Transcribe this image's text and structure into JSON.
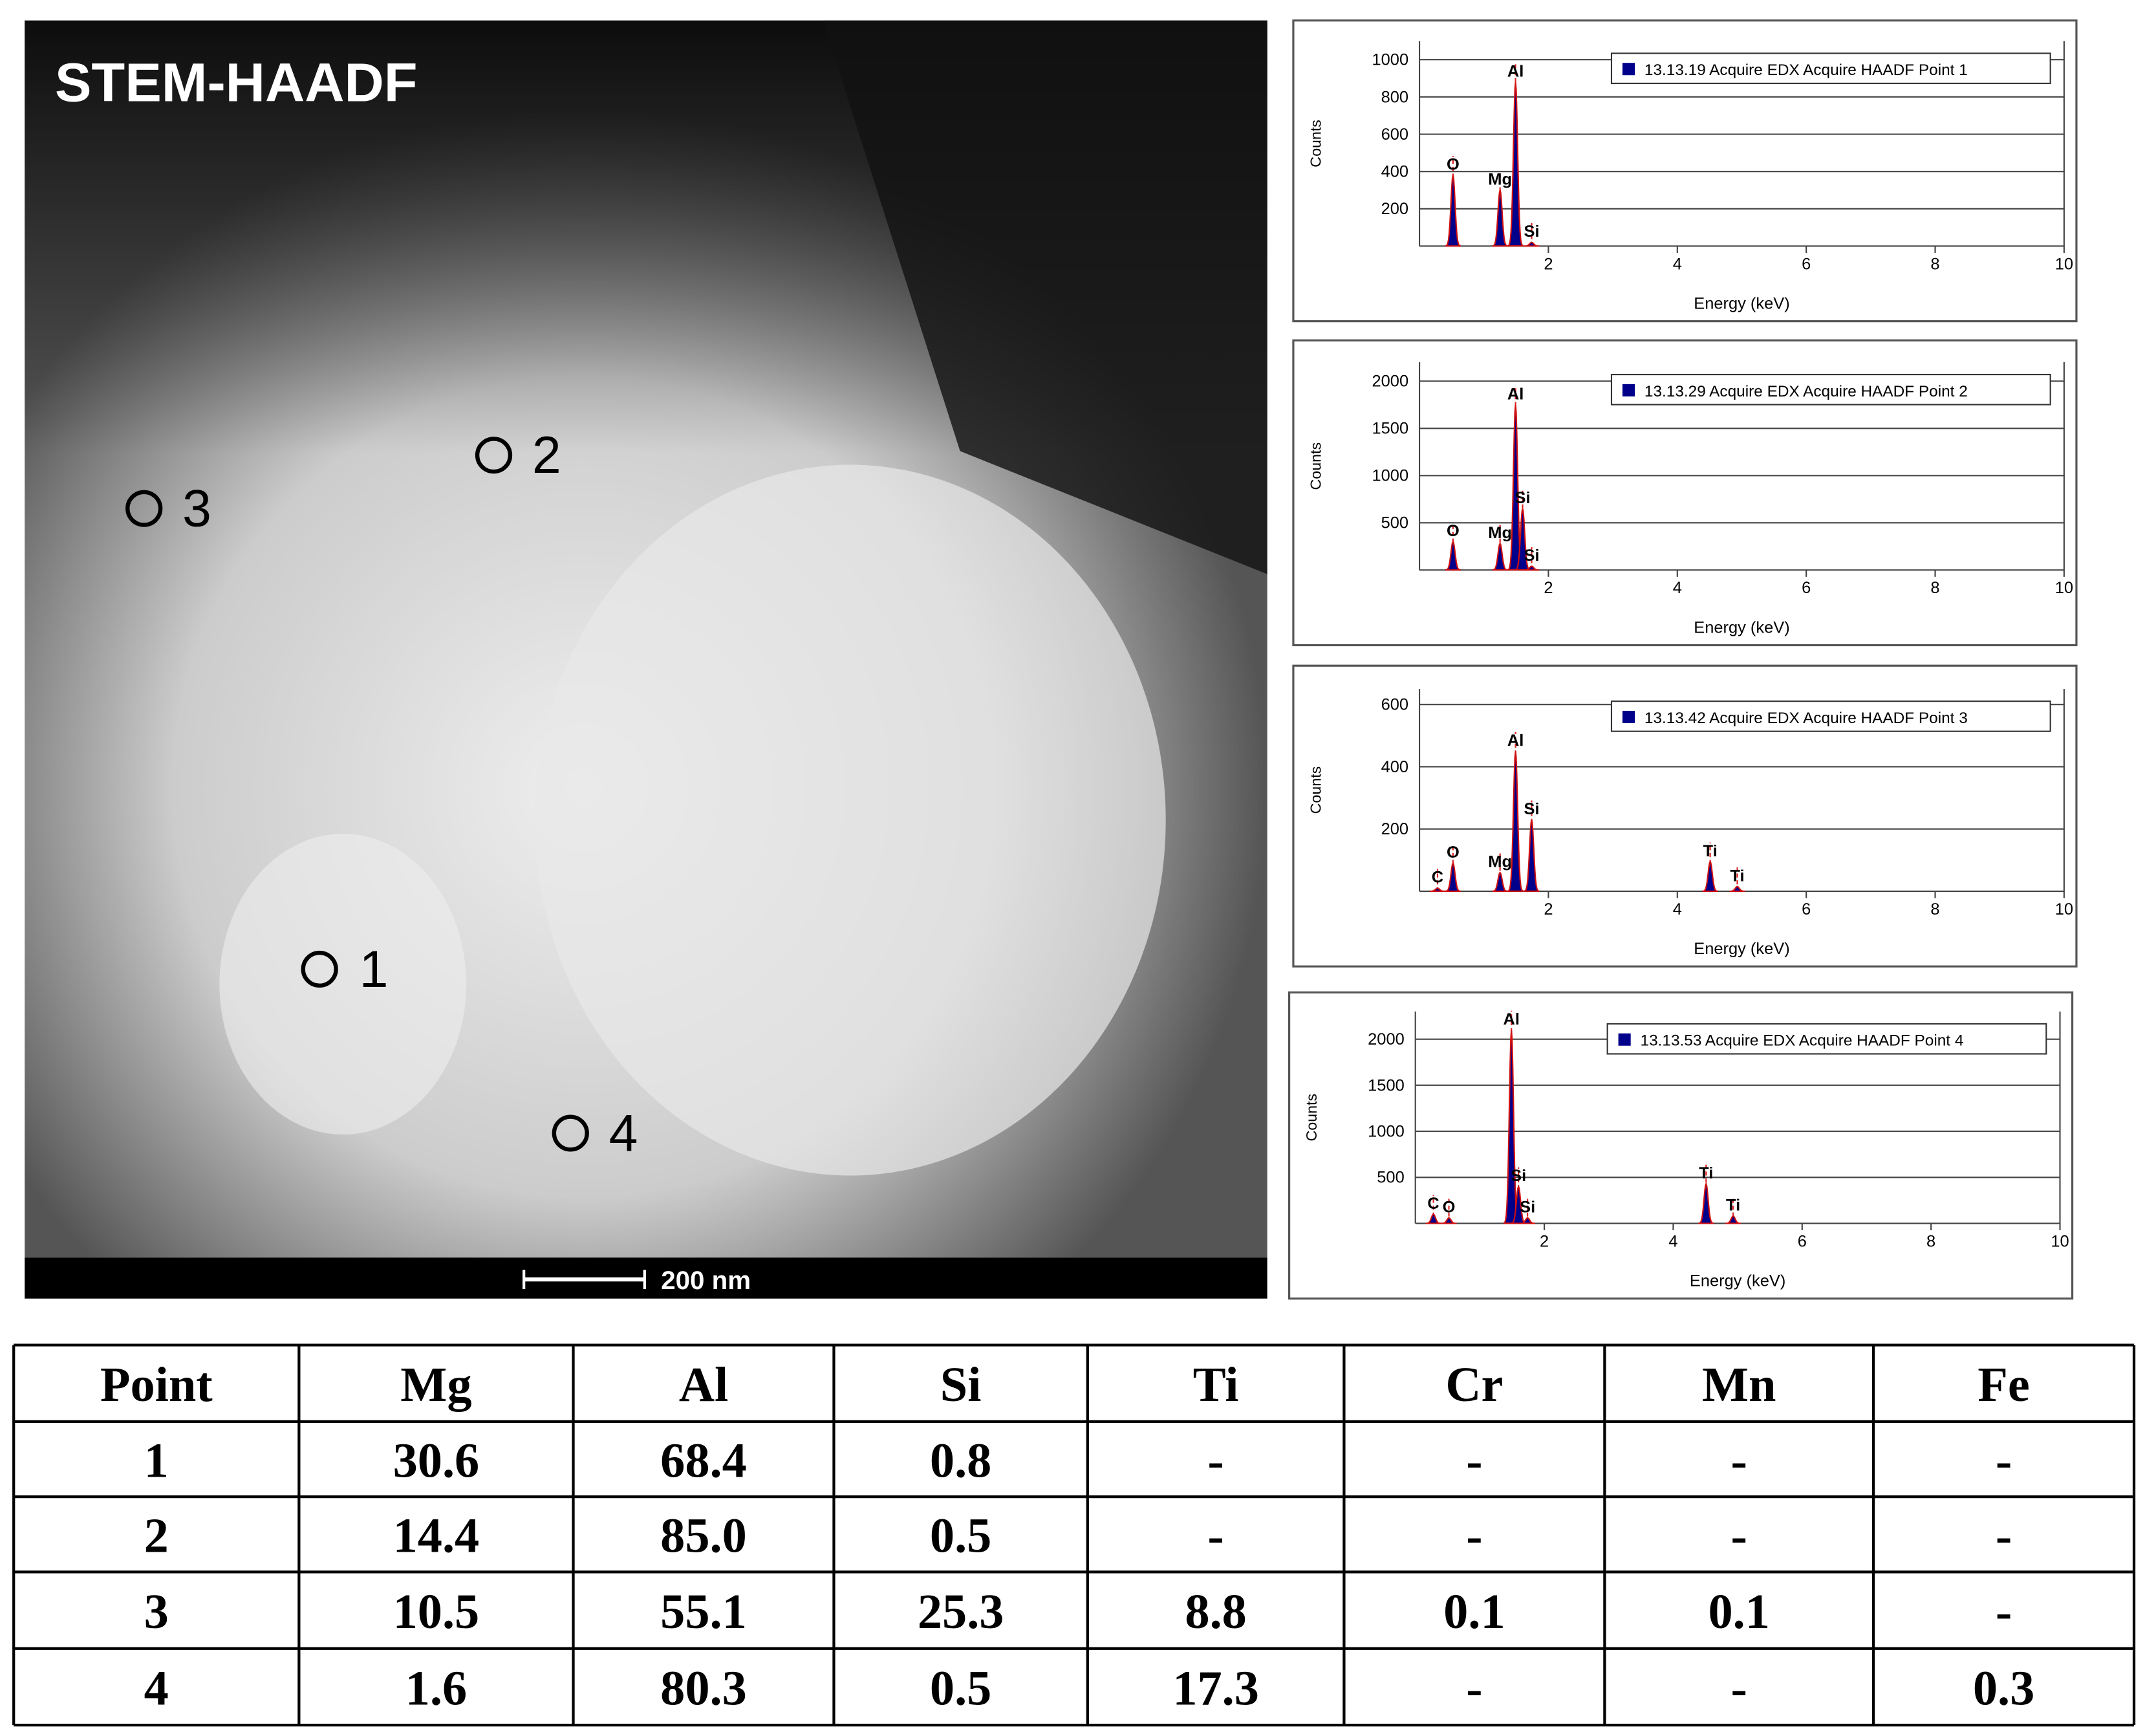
{
  "image": {
    "title": "STEM-HAADF",
    "scale_bar": "200 nm",
    "points": [
      "1",
      "2",
      "3",
      "4"
    ]
  },
  "chart_data": [
    {
      "type": "area",
      "xlabel": "Energy (keV)",
      "ylabel": "Counts",
      "xlim": [
        0,
        10
      ],
      "ylim": [
        0,
        1100
      ],
      "xticks": [
        2,
        4,
        6,
        8,
        10
      ],
      "yticks": [
        200,
        400,
        600,
        800,
        1000
      ],
      "grid": true,
      "series": [
        {
          "name": "13.13.19 Acquire EDX Acquire HAADF Point 1",
          "color": "#00008b",
          "x": [
            0.52,
            1.25,
            1.49,
            1.74
          ],
          "values": [
            380,
            300,
            880,
            20
          ]
        }
      ],
      "peak_labels": [
        "O",
        "Mg",
        "Al",
        "Si"
      ]
    },
    {
      "type": "area",
      "xlabel": "Energy (keV)",
      "ylabel": "Counts",
      "xlim": [
        0,
        10
      ],
      "ylim": [
        0,
        2200
      ],
      "xticks": [
        2,
        4,
        6,
        8,
        10
      ],
      "yticks": [
        500,
        1000,
        1500,
        2000
      ],
      "grid": true,
      "series": [
        {
          "name": "13.13.29 Acquire EDX Acquire HAADF Point 2",
          "color": "#00008b",
          "x": [
            0.52,
            1.25,
            1.49,
            1.6,
            1.74
          ],
          "values": [
            300,
            280,
            1750,
            650,
            40
          ]
        }
      ],
      "peak_labels": [
        "O",
        "Mg",
        "Al",
        "Si",
        "Si"
      ]
    },
    {
      "type": "area",
      "xlabel": "Energy (keV)",
      "ylabel": "Counts",
      "xlim": [
        0,
        10
      ],
      "ylim": [
        0,
        650
      ],
      "xticks": [
        2,
        4,
        6,
        8,
        10
      ],
      "yticks": [
        200,
        400,
        600
      ],
      "grid": true,
      "series": [
        {
          "name": "13.13.42 Acquire EDX Acquire HAADF Point 3",
          "color": "#00008b",
          "x": [
            0.28,
            0.52,
            1.25,
            1.49,
            1.74,
            4.51,
            4.93
          ],
          "values": [
            10,
            90,
            60,
            450,
            230,
            95,
            15
          ]
        }
      ],
      "peak_labels": [
        "C",
        "O",
        "Mg",
        "Al",
        "Si",
        "Ti",
        "Ti"
      ]
    },
    {
      "type": "area",
      "xlabel": "Energy (keV)",
      "ylabel": "Counts",
      "xlim": [
        0,
        10
      ],
      "ylim": [
        0,
        2300
      ],
      "xticks": [
        2,
        4,
        6,
        8,
        10
      ],
      "yticks": [
        500,
        1000,
        1500,
        2000
      ],
      "grid": true,
      "series": [
        {
          "name": "13.13.53 Acquire EDX Acquire HAADF Point 4",
          "color": "#00008b",
          "x": [
            0.28,
            0.52,
            1.49,
            1.6,
            1.74,
            4.51,
            4.93
          ],
          "values": [
            100,
            60,
            2100,
            400,
            60,
            430,
            80
          ]
        }
      ],
      "peak_labels": [
        "C",
        "O",
        "Al",
        "Si",
        "Si",
        "Ti",
        "Ti"
      ]
    }
  ],
  "table": {
    "header": [
      "Point",
      "Mg",
      "Al",
      "Si",
      "Ti",
      "Cr",
      "Mn",
      "Fe"
    ],
    "rows": [
      [
        "1",
        "30.6",
        "68.4",
        "0.8",
        "-",
        "-",
        "-",
        "-"
      ],
      [
        "2",
        "14.4",
        "85.0",
        "0.5",
        "-",
        "-",
        "-",
        "-"
      ],
      [
        "3",
        "10.5",
        "55.1",
        "25.3",
        "8.8",
        "0.1",
        "0.1",
        "-"
      ],
      [
        "4",
        "1.6",
        "80.3",
        "0.5",
        "17.3",
        "-",
        "-",
        "0.3"
      ]
    ]
  }
}
